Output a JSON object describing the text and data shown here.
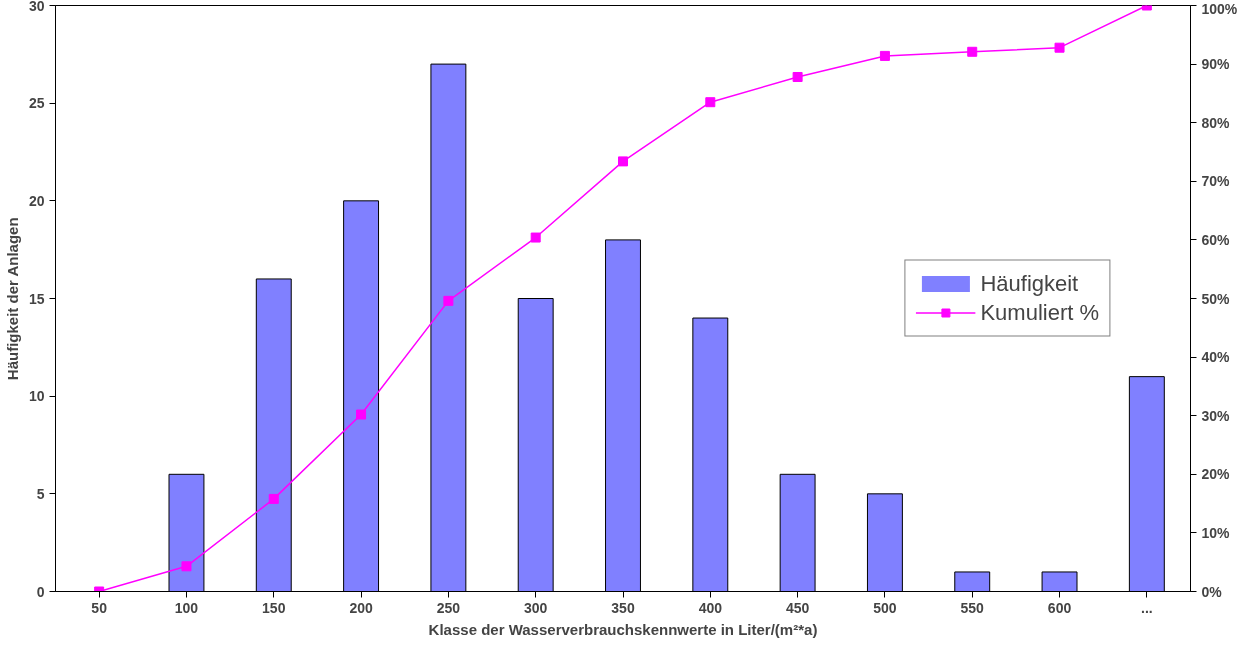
{
  "chart_data": {
    "type": "bar",
    "xlabel": "Klasse der Wasserverbrauchskennwerte in Liter/(m²*a)",
    "ylabel": "Häufigkeit der Anlagen",
    "categories": [
      "50",
      "100",
      "150",
      "200",
      "250",
      "300",
      "350",
      "400",
      "450",
      "500",
      "550",
      "600",
      "..."
    ],
    "series": [
      {
        "name": "Häufigkeit",
        "color": "#8080ff",
        "values": [
          0,
          6,
          16,
          20,
          27,
          15,
          18,
          14,
          6,
          5,
          1,
          1,
          11
        ]
      },
      {
        "name": "Kumuliert %",
        "type": "line",
        "axis": "y2",
        "color": "#ff00ff",
        "marker": "square",
        "values": [
          0,
          4.3,
          15.8,
          30.2,
          49.6,
          60.4,
          73.4,
          83.5,
          87.8,
          91.4,
          92.1,
          92.8,
          100
        ]
      }
    ],
    "ylim": [
      0,
      30
    ],
    "yticks": [
      0,
      5,
      10,
      15,
      20,
      25,
      30
    ],
    "y2lim": [
      0,
      100
    ],
    "y2ticks": [
      {
        "value": 0,
        "label": "0%"
      },
      {
        "value": 10,
        "label": "10%"
      },
      {
        "value": 20,
        "label": "20%"
      },
      {
        "value": 30,
        "label": "30%"
      },
      {
        "value": 40,
        "label": "40%"
      },
      {
        "value": 50,
        "label": "50%"
      },
      {
        "value": 60,
        "label": "60%"
      },
      {
        "value": 70,
        "label": "70%"
      },
      {
        "value": 80,
        "label": "80%"
      },
      {
        "value": 90,
        "label": "90%"
      },
      {
        "value": 100,
        "label": "100%"
      }
    ],
    "legend": "right",
    "grid": false
  }
}
